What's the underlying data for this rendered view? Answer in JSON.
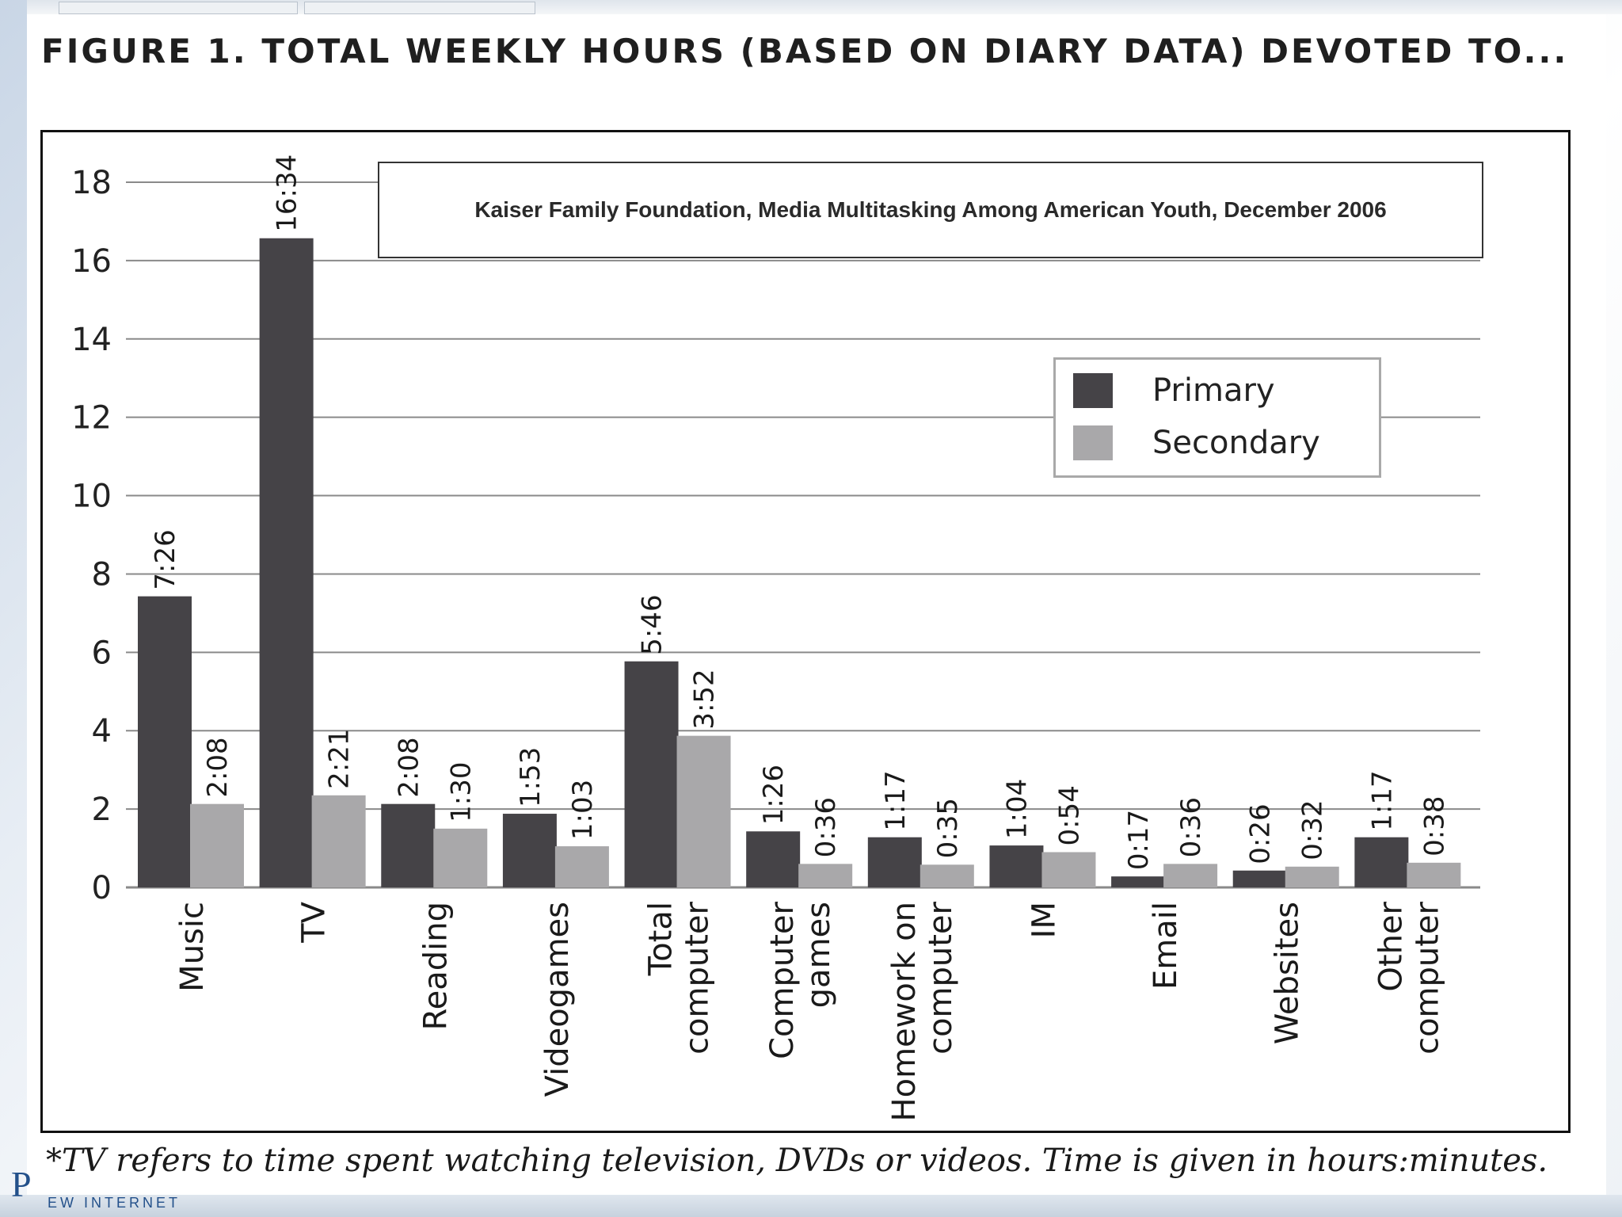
{
  "figure": {
    "title": "FIGURE 1.  TOTAL WEEKLY HOURS (BASED ON DIARY DATA) DEVOTED TO...",
    "source": "Kaiser Family Foundation, Media Multitasking Among American Youth, December 2006",
    "footnote": "*TV refers to time spent watching television, DVDs or videos. Time is given in hours:minutes.",
    "logo": "P",
    "logo_sub": "EW INTERNET"
  },
  "colors": {
    "primary": "#454347",
    "secondary": "#a9a8aa",
    "grid": "#8a8a8a"
  },
  "chart_data": {
    "type": "bar",
    "title": "FIGURE 1.  TOTAL WEEKLY HOURS (BASED ON DIARY DATA) DEVOTED TO...",
    "xlabel": "",
    "ylabel": "",
    "ylim": [
      0,
      18
    ],
    "yticks": [
      0,
      2,
      4,
      6,
      8,
      10,
      12,
      14,
      16,
      18
    ],
    "grid": true,
    "legend_position": "top-right",
    "categories": [
      "Music",
      "TV",
      "Reading",
      "Videogames",
      "Total computer",
      "Computer games",
      "Homework on computer",
      "IM",
      "Email",
      "Websites",
      "Other computer"
    ],
    "category_lines": [
      [
        "Music"
      ],
      [
        "TV"
      ],
      [
        "Reading"
      ],
      [
        "Videogames"
      ],
      [
        "Total",
        "computer"
      ],
      [
        "Computer",
        "games"
      ],
      [
        "Homework on",
        "computer"
      ],
      [
        "IM"
      ],
      [
        "Email"
      ],
      [
        "Websites"
      ],
      [
        "Other",
        "computer"
      ]
    ],
    "series": [
      {
        "name": "Primary",
        "values": [
          7.43,
          16.57,
          2.13,
          1.88,
          5.77,
          1.43,
          1.28,
          1.07,
          0.28,
          0.43,
          1.28
        ],
        "labels": [
          "7:26",
          "16:34",
          "2:08",
          "1:53",
          "5:46",
          "1:26",
          "1:17",
          "1:04",
          "0:17",
          "0:26",
          "1:17"
        ]
      },
      {
        "name": "Secondary",
        "values": [
          2.13,
          2.35,
          1.5,
          1.05,
          3.87,
          0.6,
          0.58,
          0.9,
          0.6,
          0.53,
          0.63
        ],
        "labels": [
          "2:08",
          "2:21",
          "1:30",
          "1:03",
          "3:52",
          "0:36",
          "0:35",
          "0:54",
          "0:36",
          "0:32",
          "0:38"
        ]
      }
    ]
  }
}
